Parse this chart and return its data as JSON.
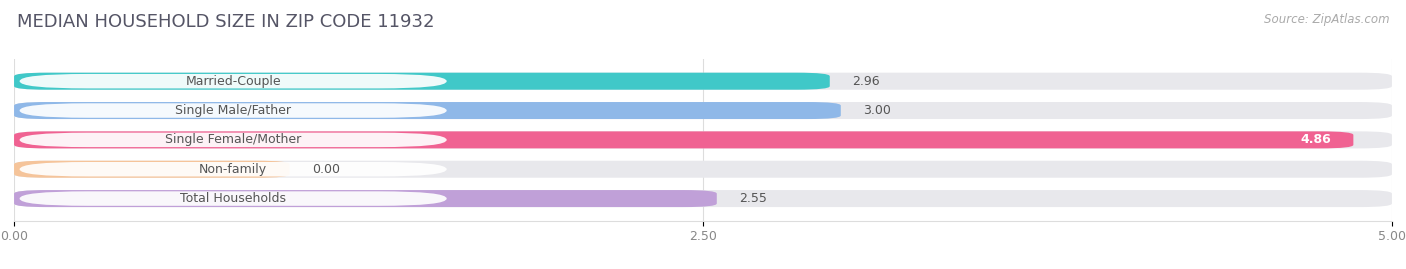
{
  "title": "MEDIAN HOUSEHOLD SIZE IN ZIP CODE 11932",
  "source": "Source: ZipAtlas.com",
  "categories": [
    "Married-Couple",
    "Single Male/Father",
    "Single Female/Mother",
    "Non-family",
    "Total Households"
  ],
  "values": [
    2.96,
    3.0,
    4.86,
    0.0,
    2.55
  ],
  "bar_colors": [
    "#40c8c8",
    "#8fb8e8",
    "#f06292",
    "#f5c49a",
    "#c0a0d8"
  ],
  "xlim": [
    0,
    5.0
  ],
  "xticks": [
    0.0,
    2.5,
    5.0
  ],
  "xtick_labels": [
    "0.00",
    "2.50",
    "5.00"
  ],
  "bar_height": 0.58,
  "background_color": "#ffffff",
  "bar_background_color": "#e8e8ec",
  "title_fontsize": 13,
  "label_fontsize": 9,
  "value_fontsize": 9,
  "source_fontsize": 8.5,
  "nonfamily_bar_width": 1.0
}
